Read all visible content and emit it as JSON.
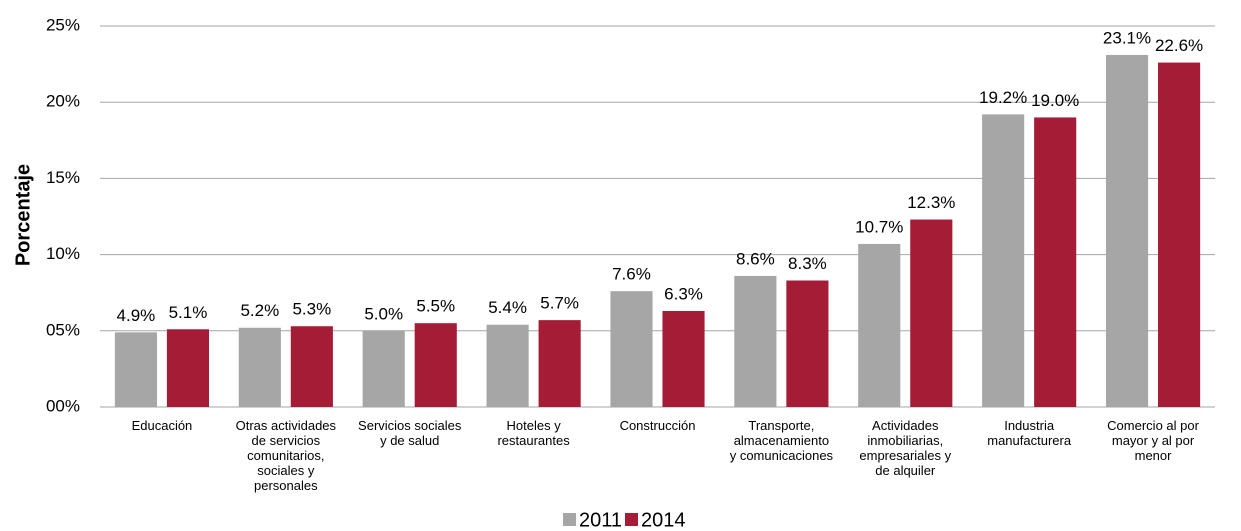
{
  "chart_data": {
    "type": "bar",
    "y_label": "Porcentaje",
    "categories": [
      "Educación",
      "Otras actividades\nde servicios\ncomunitarios,\nsociales y\npersonales",
      "Servicios sociales\ny de salud",
      "Hoteles y\nrestaurantes",
      "Construcción",
      "Transporte,\nalmacenamiento\ny comunicaciones",
      "Actividades\ninmobiliarias,\nempresariales y\nde alquiler",
      "Industria\nmanufacturera",
      "Comercio al por\nmayor y al por\nmenor"
    ],
    "series": [
      {
        "name": "2011",
        "color": "#a6a6a6",
        "values": [
          4.9,
          5.2,
          5.0,
          5.4,
          7.6,
          8.6,
          10.7,
          19.2,
          23.1
        ],
        "value_labels": [
          "4.9%",
          "5.2%",
          "5.0%",
          "5.4%",
          "7.6%",
          "8.6%",
          "10.7%",
          "19.2%",
          "23.1%"
        ]
      },
      {
        "name": "2014",
        "color": "#a51c36",
        "values": [
          5.1,
          5.3,
          5.5,
          5.7,
          6.3,
          8.3,
          12.3,
          19.0,
          22.6
        ],
        "value_labels": [
          "5.1%",
          "5.3%",
          "5.5%",
          "5.7%",
          "6.3%",
          "8.3%",
          "12.3%",
          "19.0%",
          "22.6%"
        ]
      }
    ],
    "ylim": [
      0,
      25
    ],
    "yticks": [
      {
        "value": 0,
        "label": "00%"
      },
      {
        "value": 5,
        "label": "05%"
      },
      {
        "value": 10,
        "label": "10%"
      },
      {
        "value": 15,
        "label": "15%"
      },
      {
        "value": 20,
        "label": "20%"
      },
      {
        "value": 25,
        "label": "25%"
      }
    ],
    "grid": true,
    "legend": "bottom"
  }
}
